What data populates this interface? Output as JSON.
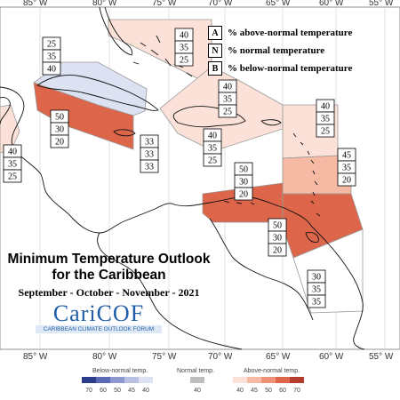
{
  "map": {
    "title_line1": "Minimum Temperature Outlook",
    "title_line2": "for the Caribbean",
    "period": "September - October - November - 2021",
    "longitude_labels": [
      "85° W",
      "80° W",
      "75° W",
      "70° W",
      "65° W",
      "60° W",
      "55° W"
    ]
  },
  "key": {
    "items": [
      {
        "letter": "A",
        "text": "% above-normal temperature"
      },
      {
        "letter": "N",
        "text": "% normal temperature"
      },
      {
        "letter": "B",
        "text": "% below-normal temperature"
      }
    ]
  },
  "logo": {
    "name": "CariCOF",
    "subtitle": "CARIBBEAN CLIMATE OUTLOOK FORUM"
  },
  "forecasts": [
    {
      "values": [
        "40",
        "35",
        "25"
      ],
      "category": "above"
    },
    {
      "values": [
        "25",
        "35",
        "40"
      ],
      "category": "below"
    },
    {
      "values": [
        "40",
        "35",
        "25"
      ],
      "category": "above"
    },
    {
      "values": [
        "50",
        "30",
        "20"
      ],
      "category": "above"
    },
    {
      "values": [
        "40",
        "35",
        "25"
      ],
      "category": "above"
    },
    {
      "values": [
        "33",
        "33",
        "33"
      ],
      "category": "normal"
    },
    {
      "values": [
        "40",
        "35",
        "25"
      ],
      "category": "above"
    },
    {
      "values": [
        "40",
        "35",
        "25"
      ],
      "category": "above"
    },
    {
      "values": [
        "45",
        "35",
        "20"
      ],
      "category": "above"
    },
    {
      "values": [
        "50",
        "30",
        "20"
      ],
      "category": "above"
    },
    {
      "values": [
        "50",
        "30",
        "20"
      ],
      "category": "above"
    },
    {
      "values": [
        "30",
        "35",
        "35"
      ],
      "category": "normal"
    }
  ],
  "colorbar": {
    "below_label": "Below-normal temp.",
    "normal_label": "Normal temp.",
    "above_label": "Above-normal temp.",
    "below_ticks": [
      "70",
      "60",
      "50",
      "45",
      "40"
    ],
    "normal_ticks": [
      "40"
    ],
    "above_ticks": [
      "40",
      "45",
      "50",
      "60",
      "70"
    ],
    "below_colors": [
      "#2b3c8c",
      "#5a69b5",
      "#8c98cf",
      "#b8c0e3",
      "#dde2f3"
    ],
    "normal_color": "#bdbdbd",
    "above_colors": [
      "#fbe1d8",
      "#f5b9a4",
      "#ee9177",
      "#dc654a",
      "#b33c2c"
    ]
  }
}
